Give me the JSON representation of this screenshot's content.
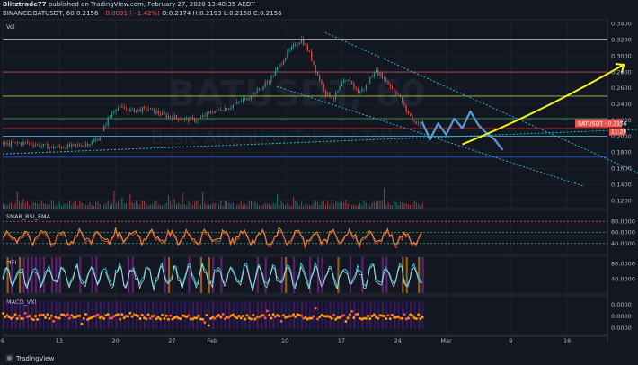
{
  "header": {
    "publisher": "Blitztrade77",
    "published_text": "published on TradingView.com, February 27, 2020 13:48:35 AEDT",
    "symbol_line": "BINANCE:BATUSDT, 60",
    "last": "0.2156",
    "change": "−0.0031 (−1.42%)",
    "ohlc": "O:0.2174 H:0.2193 L:0.2150 C:0.2156"
  },
  "watermark": {
    "symbol": "BATUSDT, 60",
    "name": "Basic Attention Token / TetherUS"
  },
  "pane_labels": {
    "vol": "Vol",
    "rsi": "SNAB_RSI_EMA",
    "mfi": "MFI",
    "macd": "MACD_VXI"
  },
  "price_tag": {
    "text": "BATUSDT · 0.2156",
    "countdown": "11:28",
    "color": "#ef5350"
  },
  "brand": "TradingView",
  "chart_data": {
    "type": "line",
    "title": "BINANCE:BATUSDT, 60",
    "xlabel": "",
    "ylabel": "",
    "x_ticks": [
      "6",
      "13",
      "20",
      "27",
      "Feb",
      "10",
      "17",
      "24",
      "Mar",
      "9",
      "16"
    ],
    "x_ticks_index": [
      0,
      7,
      14,
      21,
      26,
      35,
      42,
      49,
      55,
      63,
      70
    ],
    "x_range": [
      0,
      75
    ],
    "ylim": [
      0.11,
      0.345
    ],
    "y_ticks": [
      "0.1200",
      "0.1400",
      "0.1600",
      "0.1800",
      "0.2000",
      "0.2200",
      "0.2400",
      "0.2600",
      "0.2800",
      "0.3000",
      "0.3200",
      "0.3400"
    ],
    "price_series": {
      "x": [
        0,
        3,
        6,
        9,
        11,
        12,
        13,
        14,
        16,
        18,
        20,
        22,
        24,
        26,
        28,
        30,
        32,
        33,
        34,
        35,
        36,
        37,
        38,
        39,
        40,
        41,
        42,
        43,
        44,
        45,
        46,
        47,
        48,
        49,
        50,
        51,
        52
      ],
      "y": [
        0.19,
        0.192,
        0.186,
        0.188,
        0.192,
        0.199,
        0.222,
        0.236,
        0.232,
        0.234,
        0.226,
        0.222,
        0.22,
        0.231,
        0.236,
        0.246,
        0.26,
        0.27,
        0.284,
        0.3,
        0.312,
        0.321,
        0.303,
        0.276,
        0.254,
        0.247,
        0.265,
        0.27,
        0.254,
        0.262,
        0.282,
        0.275,
        0.263,
        0.252,
        0.232,
        0.218,
        0.2156
      ]
    },
    "projection_path": {
      "x": [
        52,
        53,
        54,
        55,
        56,
        57,
        58,
        59,
        60,
        61,
        62
      ],
      "y": [
        0.218,
        0.196,
        0.216,
        0.202,
        0.222,
        0.21,
        0.231,
        0.214,
        0.204,
        0.196,
        0.183
      ],
      "color": "#5b9bd5"
    },
    "forecast_arrow": {
      "x": [
        57,
        77
      ],
      "y": [
        0.19,
        0.289
      ],
      "color": "#f6f21e"
    },
    "horizontal_levels": [
      {
        "y": 0.321,
        "color": "#c8c8c8"
      },
      {
        "y": 0.28,
        "color": "#ef5350"
      },
      {
        "y": 0.25,
        "color": "#c8e64c"
      },
      {
        "y": 0.222,
        "color": "#4caf50"
      },
      {
        "y": 0.2095,
        "color": "#ef5350"
      },
      {
        "y": 0.2,
        "color": "#4fc3f7"
      },
      {
        "y": 0.174,
        "color": "#2962ff"
      }
    ],
    "trend_lines": [
      {
        "x": [
          40,
          80
        ],
        "y": [
          0.329,
          0.149
        ],
        "color": "#26c6da",
        "dash": true
      },
      {
        "x": [
          34,
          72
        ],
        "y": [
          0.262,
          0.138
        ],
        "color": "#26c6da",
        "dash": true
      },
      {
        "x": [
          0,
          80
        ],
        "y": [
          0.178,
          0.209
        ],
        "color": "#26c6da",
        "dash": true
      }
    ],
    "rsi": {
      "levels": [
        80,
        60,
        40
      ],
      "y_ticks": [
        "80.0000",
        "60.0000",
        "40.0000"
      ],
      "ylim": [
        20,
        100
      ]
    },
    "mfi": {
      "y_ticks": [
        "80.0000",
        "40.0000"
      ],
      "ylim": [
        0,
        100
      ]
    },
    "macd": {
      "y_ticks": [
        "0.0000",
        "0.0000",
        "0.0000"
      ]
    }
  }
}
